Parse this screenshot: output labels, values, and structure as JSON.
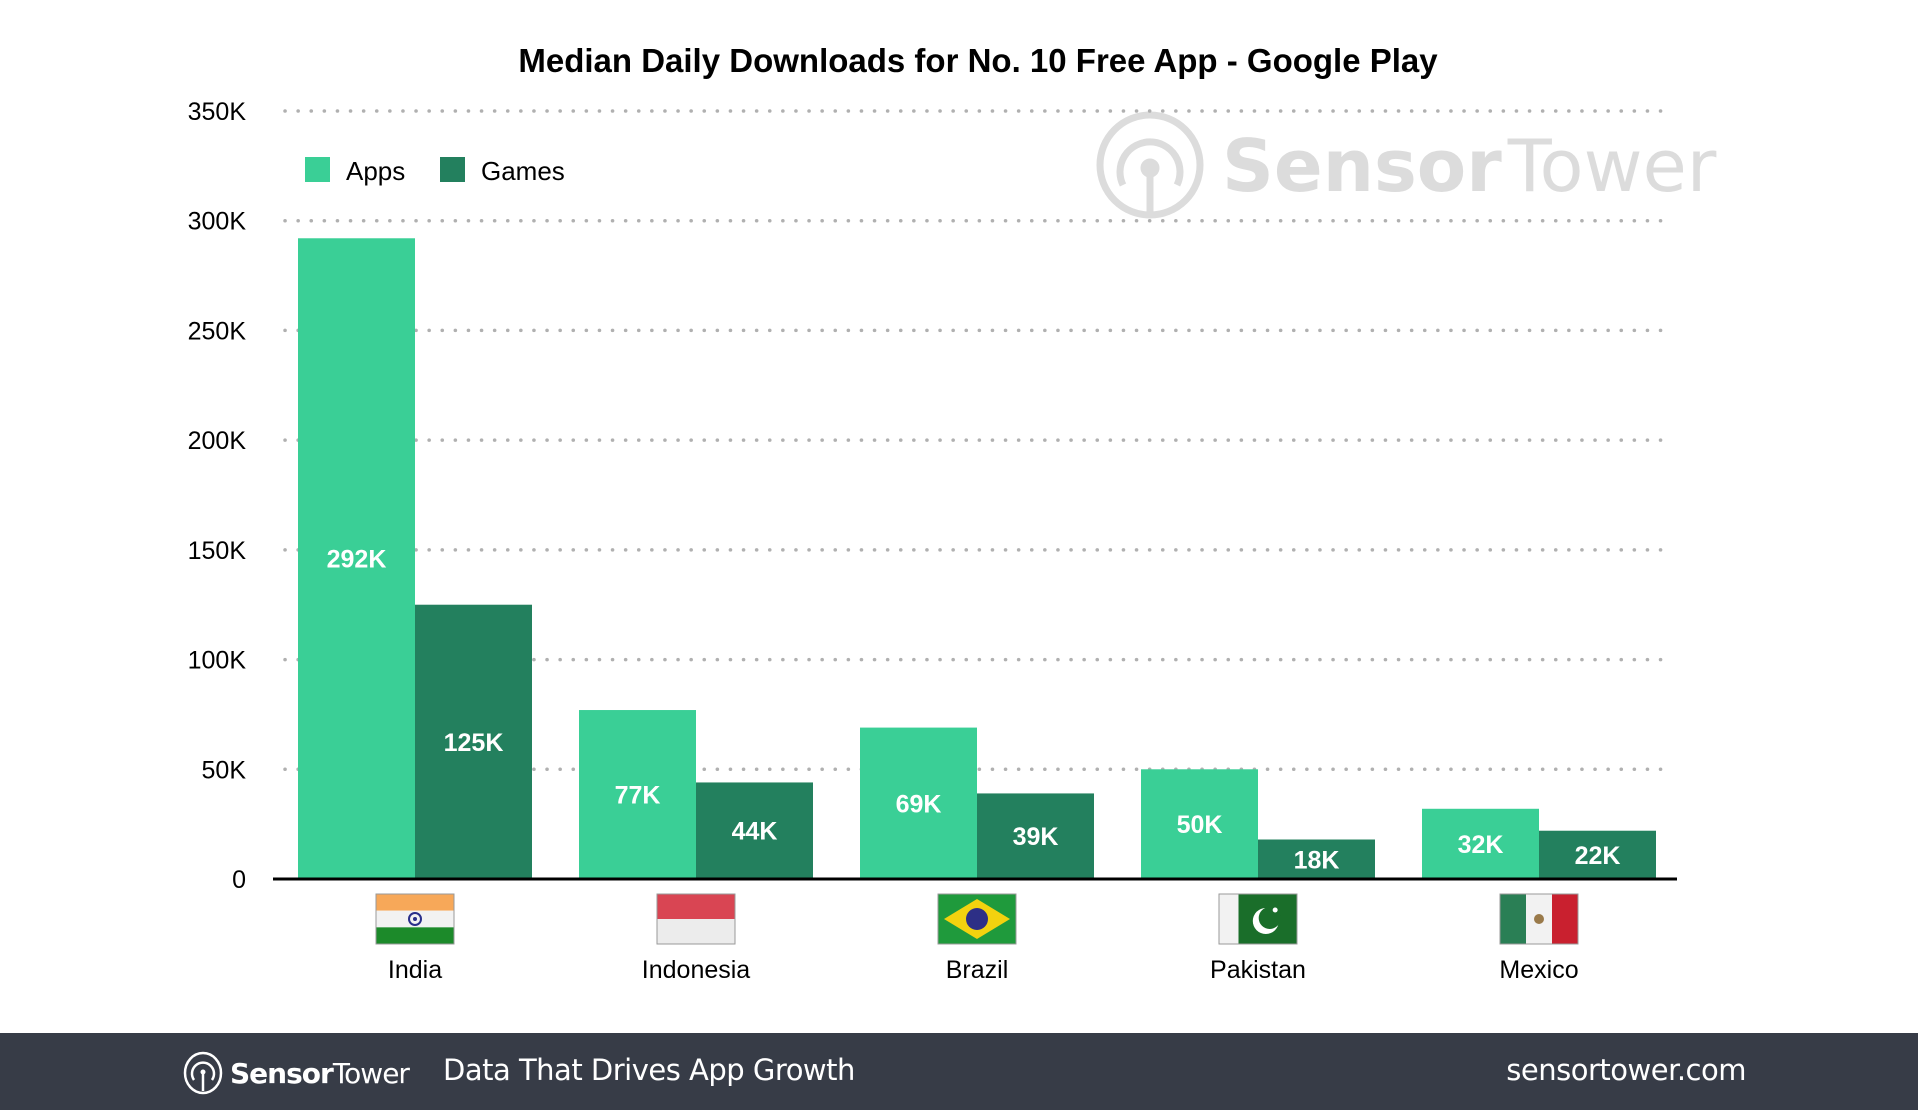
{
  "chart_data": {
    "type": "bar",
    "title": "Median Daily Downloads for No. 10 Free App - Google Play",
    "xlabel": "",
    "ylabel": "",
    "categories": [
      "India",
      "Indonesia",
      "Brazil",
      "Pakistan",
      "Mexico"
    ],
    "series": [
      {
        "name": "Apps",
        "color": "#3acf96",
        "values": [
          292000,
          77000,
          69000,
          50000,
          32000
        ],
        "labels": [
          "292K",
          "77K",
          "69K",
          "50K",
          "32K"
        ]
      },
      {
        "name": "Games",
        "color": "#23805e",
        "values": [
          125000,
          44000,
          39000,
          18000,
          22000
        ],
        "labels": [
          "125K",
          "44K",
          "39K",
          "18K",
          "22K"
        ]
      }
    ],
    "ylim": [
      0,
      350000
    ],
    "yticks": [
      0,
      50000,
      100000,
      150000,
      200000,
      250000,
      300000,
      350000
    ],
    "ytick_labels": [
      "0",
      "50K",
      "100K",
      "150K",
      "200K",
      "250K",
      "300K",
      "350K"
    ],
    "grid": true,
    "legend": "top-left",
    "category_icons": [
      "india-flag",
      "indonesia-flag",
      "brazil-flag",
      "pakistan-flag",
      "mexico-flag"
    ]
  },
  "watermark": {
    "bold": "Sensor",
    "regular": "Tower"
  },
  "footer": {
    "brand_bold": "Sensor",
    "brand_regular": "Tower",
    "tagline": "Data That Drives App Growth",
    "site": "sensortower.com"
  }
}
